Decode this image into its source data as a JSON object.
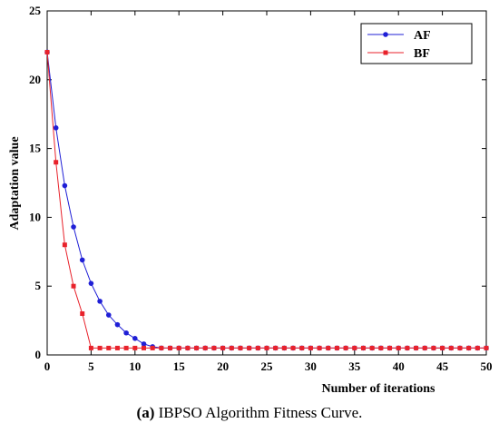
{
  "caption": {
    "letter": "(a)",
    "text": "IBPSO Algorithm Fitness Curve."
  },
  "chart_data": {
    "type": "line",
    "xlabel": "Number of iterations",
    "ylabel": "Adaptation value",
    "xlim": [
      0,
      50
    ],
    "ylim": [
      0,
      25
    ],
    "xticks": [
      0,
      5,
      10,
      15,
      20,
      25,
      30,
      35,
      40,
      45,
      50
    ],
    "yticks": [
      0,
      5,
      10,
      15,
      20,
      25
    ],
    "grid": false,
    "legend_position": "top-right",
    "series": [
      {
        "name": "AF",
        "color": "#1f1fd6",
        "marker": "circle",
        "x": [
          0,
          1,
          2,
          3,
          4,
          5,
          6,
          7,
          8,
          9,
          10,
          11,
          12,
          13,
          14,
          15,
          16,
          17,
          18,
          19,
          20,
          21,
          22,
          23,
          24,
          25,
          26,
          27,
          28,
          29,
          30,
          31,
          32,
          33,
          34,
          35,
          36,
          37,
          38,
          39,
          40,
          41,
          42,
          43,
          44,
          45,
          46,
          47,
          48,
          49,
          50
        ],
        "values": [
          22,
          16.5,
          12.3,
          9.3,
          6.9,
          5.2,
          3.9,
          2.9,
          2.2,
          1.6,
          1.2,
          0.8,
          0.6,
          0.5,
          0.5,
          0.5,
          0.5,
          0.5,
          0.5,
          0.5,
          0.5,
          0.5,
          0.5,
          0.5,
          0.5,
          0.5,
          0.5,
          0.5,
          0.5,
          0.5,
          0.5,
          0.5,
          0.5,
          0.5,
          0.5,
          0.5,
          0.5,
          0.5,
          0.5,
          0.5,
          0.5,
          0.5,
          0.5,
          0.5,
          0.5,
          0.5,
          0.5,
          0.5,
          0.5,
          0.5,
          0.5
        ]
      },
      {
        "name": "BF",
        "color": "#e8222b",
        "marker": "square",
        "x": [
          0,
          1,
          2,
          3,
          4,
          5,
          6,
          7,
          8,
          9,
          10,
          11,
          12,
          13,
          14,
          15,
          16,
          17,
          18,
          19,
          20,
          21,
          22,
          23,
          24,
          25,
          26,
          27,
          28,
          29,
          30,
          31,
          32,
          33,
          34,
          35,
          36,
          37,
          38,
          39,
          40,
          41,
          42,
          43,
          44,
          45,
          46,
          47,
          48,
          49,
          50
        ],
        "values": [
          22,
          14,
          8,
          5,
          3,
          0.5,
          0.5,
          0.5,
          0.5,
          0.5,
          0.5,
          0.5,
          0.5,
          0.5,
          0.5,
          0.5,
          0.5,
          0.5,
          0.5,
          0.5,
          0.5,
          0.5,
          0.5,
          0.5,
          0.5,
          0.5,
          0.5,
          0.5,
          0.5,
          0.5,
          0.5,
          0.5,
          0.5,
          0.5,
          0.5,
          0.5,
          0.5,
          0.5,
          0.5,
          0.5,
          0.5,
          0.5,
          0.5,
          0.5,
          0.5,
          0.5,
          0.5,
          0.5,
          0.5,
          0.5,
          0.5
        ]
      }
    ]
  }
}
